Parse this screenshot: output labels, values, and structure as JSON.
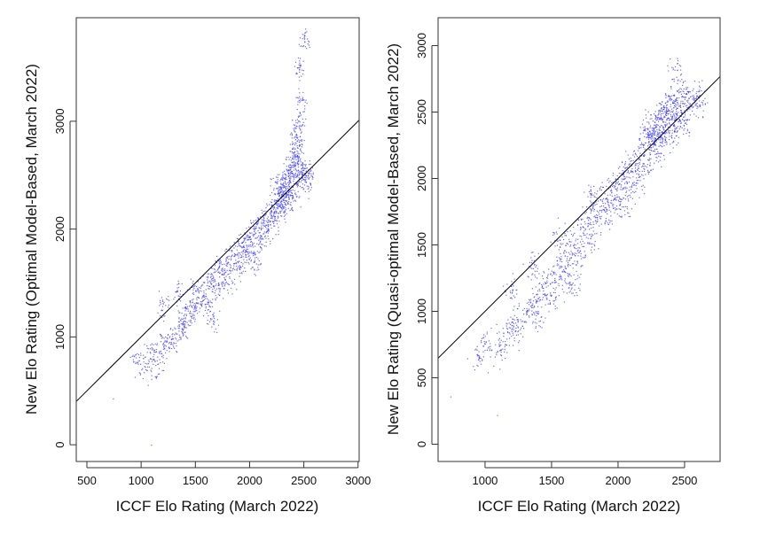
{
  "chart_data": [
    {
      "type": "scatter",
      "xlabel": "ICCF Elo Rating (March 2022)",
      "ylabel": "New Elo Rating (Optimal Model-Based, March 2022)",
      "xlim": [
        402,
        3010
      ],
      "ylim": [
        -155,
        3960
      ],
      "xticks": [
        "500",
        "1000",
        "1500",
        "2000",
        "2500",
        "3000"
      ],
      "yticks": [
        "0",
        "1000",
        "2000",
        "3000"
      ],
      "reference_line": "y = x",
      "point_color": "#3a3aff",
      "points": [
        [
          740,
          430
        ],
        [
          1090,
          0
        ],
        [
          950,
          800
        ],
        [
          1050,
          700
        ],
        [
          1100,
          850
        ],
        [
          1150,
          750
        ],
        [
          1200,
          900
        ],
        [
          1250,
          950
        ],
        [
          1300,
          1000
        ],
        [
          1350,
          1100
        ],
        [
          1400,
          1050
        ],
        [
          1400,
          1250
        ],
        [
          1450,
          1200
        ],
        [
          1500,
          1300
        ],
        [
          1500,
          1450
        ],
        [
          1550,
          1350
        ],
        [
          1600,
          1500
        ],
        [
          1600,
          1300
        ],
        [
          1650,
          1550
        ],
        [
          1700,
          1450
        ],
        [
          1700,
          1650
        ],
        [
          1750,
          1600
        ],
        [
          1800,
          1700
        ],
        [
          1800,
          1500
        ],
        [
          1850,
          1750
        ],
        [
          1900,
          1800
        ],
        [
          1900,
          1650
        ],
        [
          1950,
          1900
        ],
        [
          2000,
          1950
        ],
        [
          2000,
          1800
        ],
        [
          2050,
          2000
        ],
        [
          2100,
          2050
        ],
        [
          2100,
          1900
        ],
        [
          2150,
          2100
        ],
        [
          2200,
          2200
        ],
        [
          2200,
          2050
        ],
        [
          2250,
          2250
        ],
        [
          2250,
          2150
        ],
        [
          2300,
          2300
        ],
        [
          2300,
          2400
        ],
        [
          2300,
          2200
        ],
        [
          2350,
          2350
        ],
        [
          2350,
          2500
        ],
        [
          2350,
          2250
        ],
        [
          2400,
          2450
        ],
        [
          2400,
          2600
        ],
        [
          2400,
          2300
        ],
        [
          2420,
          2700
        ],
        [
          2450,
          2800
        ],
        [
          2450,
          2500
        ],
        [
          2470,
          3000
        ],
        [
          2480,
          3200
        ],
        [
          2480,
          2650
        ],
        [
          2500,
          2400
        ],
        [
          2450,
          3500
        ],
        [
          2500,
          3750
        ],
        [
          2520,
          2550
        ],
        [
          2550,
          2500
        ],
        [
          1650,
          1150
        ],
        [
          1350,
          1400
        ],
        [
          1200,
          1300
        ],
        [
          2050,
          1700
        ],
        [
          2250,
          2400
        ],
        [
          2330,
          2450
        ],
        [
          2380,
          2550
        ],
        [
          2280,
          2300
        ],
        [
          2150,
          1950
        ],
        [
          1950,
          1750
        ],
        [
          2400,
          2700
        ],
        [
          2430,
          2900
        ]
      ]
    },
    {
      "type": "scatter",
      "xlabel": "ICCF Elo Rating (March 2022)",
      "ylabel": "New Elo Rating (Quasi-optimal Model-Based, March 2022)",
      "xlim": [
        647,
        2767
      ],
      "ylim": [
        -130,
        3210
      ],
      "xticks": [
        "1000",
        "1500",
        "2000",
        "2500"
      ],
      "yticks": [
        "0",
        "500",
        "1000",
        "1500",
        "2000",
        "2500",
        "3000"
      ],
      "reference_line": "y = x",
      "point_color": "#3a3aff",
      "points": [
        [
          740,
          360
        ],
        [
          1090,
          220
        ],
        [
          950,
          650
        ],
        [
          1000,
          750
        ],
        [
          1100,
          700
        ],
        [
          1150,
          800
        ],
        [
          1200,
          900
        ],
        [
          1250,
          850
        ],
        [
          1300,
          1000
        ],
        [
          1350,
          1050
        ],
        [
          1400,
          1100
        ],
        [
          1400,
          950
        ],
        [
          1450,
          1200
        ],
        [
          1500,
          1250
        ],
        [
          1500,
          1100
        ],
        [
          1550,
          1350
        ],
        [
          1600,
          1400
        ],
        [
          1600,
          1250
        ],
        [
          1650,
          1500
        ],
        [
          1700,
          1550
        ],
        [
          1700,
          1400
        ],
        [
          1750,
          1650
        ],
        [
          1800,
          1700
        ],
        [
          1800,
          1550
        ],
        [
          1850,
          1800
        ],
        [
          1900,
          1850
        ],
        [
          1900,
          1700
        ],
        [
          1950,
          1950
        ],
        [
          2000,
          1950
        ],
        [
          2000,
          1850
        ],
        [
          2050,
          2050
        ],
        [
          2100,
          2100
        ],
        [
          2100,
          1950
        ],
        [
          2150,
          2150
        ],
        [
          2200,
          2250
        ],
        [
          2200,
          2100
        ],
        [
          2250,
          2300
        ],
        [
          2250,
          2200
        ],
        [
          2300,
          2350
        ],
        [
          2300,
          2250
        ],
        [
          2300,
          2450
        ],
        [
          2350,
          2400
        ],
        [
          2350,
          2300
        ],
        [
          2350,
          2500
        ],
        [
          2400,
          2450
        ],
        [
          2400,
          2550
        ],
        [
          2400,
          2350
        ],
        [
          2450,
          2500
        ],
        [
          2450,
          2600
        ],
        [
          2450,
          2400
        ],
        [
          2500,
          2550
        ],
        [
          2500,
          2450
        ],
        [
          2550,
          2600
        ],
        [
          2600,
          2650
        ],
        [
          2420,
          2800
        ],
        [
          1350,
          1350
        ],
        [
          1200,
          1150
        ],
        [
          1650,
          1200
        ],
        [
          2050,
          1800
        ],
        [
          2250,
          2400
        ],
        [
          2330,
          2480
        ],
        [
          2380,
          2550
        ],
        [
          2280,
          2300
        ],
        [
          2150,
          2000
        ],
        [
          1950,
          1800
        ],
        [
          2480,
          2650
        ],
        [
          2200,
          2350
        ],
        [
          1800,
          1850
        ],
        [
          1550,
          1550
        ],
        [
          2600,
          2550
        ]
      ]
    }
  ]
}
